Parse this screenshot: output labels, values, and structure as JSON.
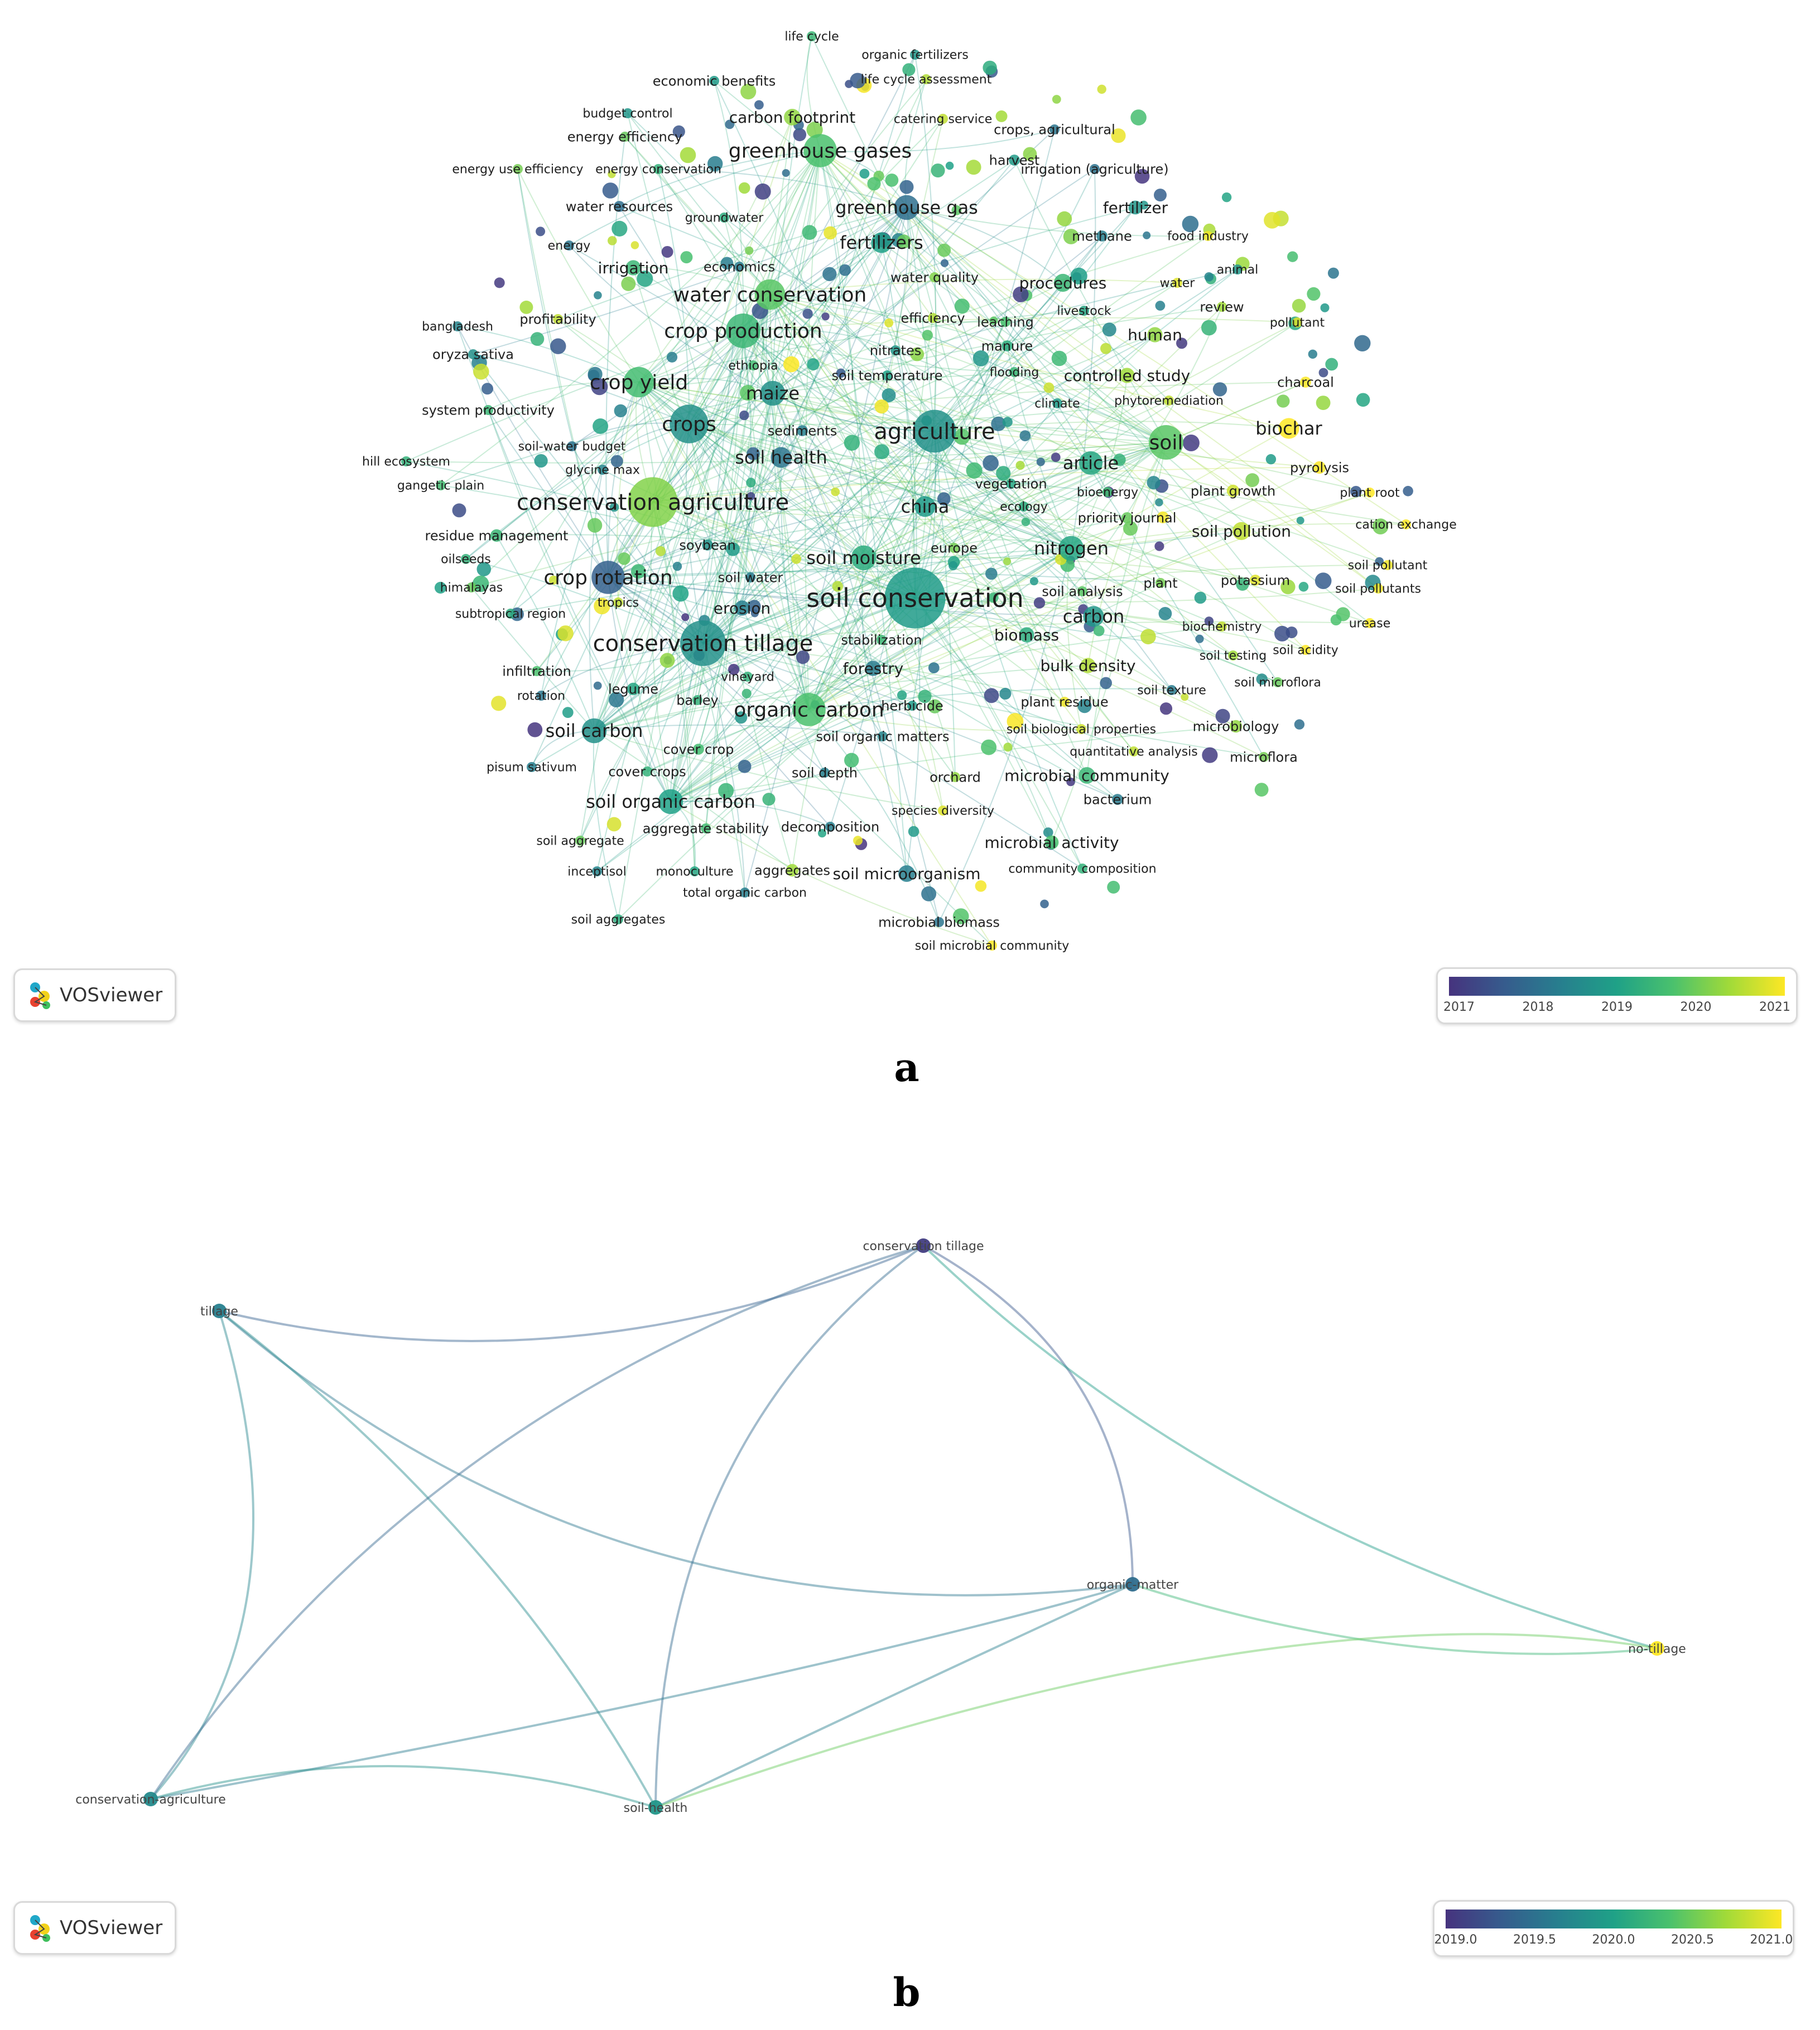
{
  "panel_a": {
    "caption": "a",
    "brand": "VOSviewer",
    "legend_ticks": [
      "2017",
      "2018",
      "2019",
      "2020",
      "2021"
    ],
    "colors": {
      "2017": "#46337e",
      "2018": "#365c8d",
      "2019": "#21918c",
      "2020": "#5ec962",
      "2021": "#fde725"
    },
    "nodes": [
      {
        "label": "life cycle",
        "year": 2019.6,
        "w": 12
      },
      {
        "label": "organic fertilizers",
        "year": 2019.0,
        "w": 10
      },
      {
        "label": "life cycle assessment",
        "year": 2020.5,
        "w": 12
      },
      {
        "label": "economic benefits",
        "year": 2019.1,
        "w": 14
      },
      {
        "label": "budget control",
        "year": 2019.0,
        "w": 12
      },
      {
        "label": "carbon footprint",
        "year": 2020.3,
        "w": 24
      },
      {
        "label": "catering service",
        "year": 2020.6,
        "w": 10
      },
      {
        "label": "crops, agricultural",
        "year": 2018.4,
        "w": 14
      },
      {
        "label": "energy efficiency",
        "year": 2020.0,
        "w": 14
      },
      {
        "label": "greenhouse gases",
        "year": 2019.8,
        "w": 48
      },
      {
        "label": "harvest",
        "year": 2019.1,
        "w": 16
      },
      {
        "label": "irrigation (agriculture)",
        "year": 2018.3,
        "w": 14
      },
      {
        "label": "energy use efficiency",
        "year": 2020.1,
        "w": 10
      },
      {
        "label": "energy conservation",
        "year": 2019.5,
        "w": 12
      },
      {
        "label": "water resources",
        "year": 2018.2,
        "w": 16
      },
      {
        "label": "groundwater",
        "year": 2019.4,
        "w": 12
      },
      {
        "label": "greenhouse gas",
        "year": 2018.2,
        "w": 36
      },
      {
        "label": "fertilizer",
        "year": 2019.0,
        "w": 20
      },
      {
        "label": "energy",
        "year": 2018.4,
        "w": 10
      },
      {
        "label": "methane",
        "year": 2018.6,
        "w": 16
      },
      {
        "label": "food industry",
        "year": 2020.9,
        "w": 12
      },
      {
        "label": "fertilizers",
        "year": 2019.2,
        "w": 30
      },
      {
        "label": "irrigation",
        "year": 2019.6,
        "w": 22
      },
      {
        "label": "economics",
        "year": 2018.5,
        "w": 14
      },
      {
        "label": "animal",
        "year": 2019.0,
        "w": 10
      },
      {
        "label": "water quality",
        "year": 2020.2,
        "w": 14
      },
      {
        "label": "water",
        "year": 2020.8,
        "w": 12
      },
      {
        "label": "procedures",
        "year": 2019.6,
        "w": 26
      },
      {
        "label": "water conservation",
        "year": 2019.9,
        "w": 44
      },
      {
        "label": "review",
        "year": 2020.4,
        "w": 14
      },
      {
        "label": "bangladesh",
        "year": 2018.7,
        "w": 12
      },
      {
        "label": "profitability",
        "year": 2020.6,
        "w": 14
      },
      {
        "label": "efficiency",
        "year": 2020.5,
        "w": 14
      },
      {
        "label": "leaching",
        "year": 2019.8,
        "w": 14
      },
      {
        "label": "livestock",
        "year": 2019.3,
        "w": 12
      },
      {
        "label": "pollutant",
        "year": 2020.8,
        "w": 10
      },
      {
        "label": "crop production",
        "year": 2019.6,
        "w": 50
      },
      {
        "label": "human",
        "year": 2020.3,
        "w": 22
      },
      {
        "label": "oryza sativa",
        "year": 2018.9,
        "w": 14
      },
      {
        "label": "nitrates",
        "year": 2019.0,
        "w": 14
      },
      {
        "label": "manure",
        "year": 2019.4,
        "w": 16
      },
      {
        "label": "ethiopia",
        "year": 2019.7,
        "w": 12
      },
      {
        "label": "charcoal",
        "year": 2021.0,
        "w": 16
      },
      {
        "label": "crop yield",
        "year": 2019.7,
        "w": 44
      },
      {
        "label": "maize",
        "year": 2018.9,
        "w": 36
      },
      {
        "label": "soil temperature",
        "year": 2019.2,
        "w": 14
      },
      {
        "label": "flooding",
        "year": 2019.6,
        "w": 12
      },
      {
        "label": "controlled study",
        "year": 2020.4,
        "w": 22
      },
      {
        "label": "system productivity",
        "year": 2019.6,
        "w": 14
      },
      {
        "label": "phytoremediation",
        "year": 2020.6,
        "w": 12
      },
      {
        "label": "climate",
        "year": 2019.1,
        "w": 12
      },
      {
        "label": "biochar",
        "year": 2021.0,
        "w": 30
      },
      {
        "label": "crops",
        "year": 2018.9,
        "w": 56
      },
      {
        "label": "sediments",
        "year": 2018.6,
        "w": 16
      },
      {
        "label": "agriculture",
        "year": 2018.9,
        "w": 62
      },
      {
        "label": "soil",
        "year": 2019.9,
        "w": 50
      },
      {
        "label": "soil-water budget",
        "year": 2018.3,
        "w": 12
      },
      {
        "label": "hill ecosystem",
        "year": 2019.5,
        "w": 10
      },
      {
        "label": "soil health",
        "year": 2018.4,
        "w": 30
      },
      {
        "label": "pyrolysis",
        "year": 2021.0,
        "w": 18
      },
      {
        "label": "glycine max",
        "year": 2018.7,
        "w": 12
      },
      {
        "label": "gangetic plain",
        "year": 2019.7,
        "w": 12
      },
      {
        "label": "article",
        "year": 2019.3,
        "w": 34
      },
      {
        "label": "vegetation",
        "year": 2019.3,
        "w": 14
      },
      {
        "label": "plant growth",
        "year": 2020.7,
        "w": 18
      },
      {
        "label": "plant root",
        "year": 2021.0,
        "w": 10
      },
      {
        "label": "conservation agriculture",
        "year": 2020.2,
        "w": 72
      },
      {
        "label": "bioenergy",
        "year": 2019.7,
        "w": 12
      },
      {
        "label": "ecology",
        "year": 2019.4,
        "w": 12
      },
      {
        "label": "china",
        "year": 2019.1,
        "w": 30
      },
      {
        "label": "priority journal",
        "year": 2020.0,
        "w": 16
      },
      {
        "label": "residue management",
        "year": 2019.6,
        "w": 18
      },
      {
        "label": "cation exchange",
        "year": 2021.0,
        "w": 10
      },
      {
        "label": "soil pollution",
        "year": 2020.6,
        "w": 26
      },
      {
        "label": "oilseeds",
        "year": 2019.5,
        "w": 10
      },
      {
        "label": "soybean",
        "year": 2018.9,
        "w": 16
      },
      {
        "label": "europe",
        "year": 2020.1,
        "w": 14
      },
      {
        "label": "nitrogen",
        "year": 2019.3,
        "w": 36
      },
      {
        "label": "soil moisture",
        "year": 2019.4,
        "w": 36
      },
      {
        "label": "soil pollutant",
        "year": 2020.9,
        "w": 10
      },
      {
        "label": "crop rotation",
        "year": 2017.9,
        "w": 48
      },
      {
        "label": "soil water",
        "year": 2018.5,
        "w": 14
      },
      {
        "label": "himalayas",
        "year": 2020.0,
        "w": 12
      },
      {
        "label": "soil analysis",
        "year": 2019.9,
        "w": 14
      },
      {
        "label": "plant",
        "year": 2020.1,
        "w": 14
      },
      {
        "label": "potassium",
        "year": 2020.8,
        "w": 16
      },
      {
        "label": "soil pollutants",
        "year": 2020.9,
        "w": 10
      },
      {
        "label": "soil conservation",
        "year": 2019.1,
        "w": 88
      },
      {
        "label": "tropics",
        "year": 2020.6,
        "w": 12
      },
      {
        "label": "erosion",
        "year": 2018.6,
        "w": 22
      },
      {
        "label": "subtropical region",
        "year": 2019.4,
        "w": 12
      },
      {
        "label": "carbon",
        "year": 2019.0,
        "w": 30
      },
      {
        "label": "urease",
        "year": 2021.0,
        "w": 10
      },
      {
        "label": "biomass",
        "year": 2019.4,
        "w": 22
      },
      {
        "label": "conservation tillage",
        "year": 2018.9,
        "w": 66
      },
      {
        "label": "stabilization",
        "year": 2019.6,
        "w": 14
      },
      {
        "label": "biochemistry",
        "year": 2020.6,
        "w": 12
      },
      {
        "label": "soil acidity",
        "year": 2021.0,
        "w": 12
      },
      {
        "label": "soil testing",
        "year": 2020.4,
        "w": 12
      },
      {
        "label": "infiltration",
        "year": 2019.8,
        "w": 14
      },
      {
        "label": "bulk density",
        "year": 2020.5,
        "w": 22
      },
      {
        "label": "forestry",
        "year": 2018.5,
        "w": 22
      },
      {
        "label": "vineyard",
        "year": 2019.5,
        "w": 12
      },
      {
        "label": "soil microflora",
        "year": 2020.0,
        "w": 12
      },
      {
        "label": "legume",
        "year": 2019.3,
        "w": 18
      },
      {
        "label": "soil texture",
        "year": 2018.5,
        "w": 12
      },
      {
        "label": "rotation",
        "year": 2018.4,
        "w": 12
      },
      {
        "label": "barley",
        "year": 2019.5,
        "w": 14
      },
      {
        "label": "organic carbon",
        "year": 2019.8,
        "w": 48
      },
      {
        "label": "herbicide",
        "year": 2019.1,
        "w": 14
      },
      {
        "label": "plant residue",
        "year": 2020.9,
        "w": 14
      },
      {
        "label": "soil carbon",
        "year": 2018.9,
        "w": 36
      },
      {
        "label": "soil biological properties",
        "year": 2020.7,
        "w": 12
      },
      {
        "label": "microbiology",
        "year": 2020.3,
        "w": 18
      },
      {
        "label": "soil organic matters",
        "year": 2018.7,
        "w": 14
      },
      {
        "label": "cover crop",
        "year": 2019.7,
        "w": 16
      },
      {
        "label": "quantitative analysis",
        "year": 2020.6,
        "w": 12
      },
      {
        "label": "microflora",
        "year": 2020.1,
        "w": 14
      },
      {
        "label": "pisum sativum",
        "year": 2018.6,
        "w": 10
      },
      {
        "label": "cover crops",
        "year": 2019.5,
        "w": 14
      },
      {
        "label": "soil depth",
        "year": 2018.6,
        "w": 14
      },
      {
        "label": "orchard",
        "year": 2020.3,
        "w": 14
      },
      {
        "label": "microbial community",
        "year": 2019.6,
        "w": 24
      },
      {
        "label": "soil organic carbon",
        "year": 2019.2,
        "w": 36
      },
      {
        "label": "bacterium",
        "year": 2018.5,
        "w": 16
      },
      {
        "label": "species diversity",
        "year": 2020.8,
        "w": 12
      },
      {
        "label": "aggregate stability",
        "year": 2019.7,
        "w": 14
      },
      {
        "label": "decomposition",
        "year": 2018.6,
        "w": 14
      },
      {
        "label": "soil aggregate",
        "year": 2020.0,
        "w": 10
      },
      {
        "label": "microbial activity",
        "year": 2019.8,
        "w": 20
      },
      {
        "label": "inceptisol",
        "year": 2018.7,
        "w": 10
      },
      {
        "label": "monoculture",
        "year": 2019.3,
        "w": 12
      },
      {
        "label": "aggregates",
        "year": 2020.4,
        "w": 18
      },
      {
        "label": "soil microorganism",
        "year": 2018.6,
        "w": 24
      },
      {
        "label": "community composition",
        "year": 2019.5,
        "w": 12
      },
      {
        "label": "total organic carbon",
        "year": 2018.6,
        "w": 12
      },
      {
        "label": "soil aggregates",
        "year": 2019.4,
        "w": 10
      },
      {
        "label": "microbial biomass",
        "year": 2018.4,
        "w": 14
      },
      {
        "label": "soil microbial community",
        "year": 2021.0,
        "w": 12
      }
    ]
  },
  "panel_b": {
    "caption": "b",
    "brand": "VOSviewer",
    "legend_ticks": [
      "2019.0",
      "2019.5",
      "2020.0",
      "2020.5",
      "2021.0"
    ],
    "nodes": [
      {
        "id": "conservation tillage",
        "label": "conservation tillage",
        "year": 2019.1
      },
      {
        "id": "tillage",
        "label": "tillage",
        "year": 2019.8
      },
      {
        "id": "organic-matter",
        "label": "organic-matter",
        "year": 2019.6
      },
      {
        "id": "no-tillage",
        "label": "no-tillage",
        "year": 2021.0
      },
      {
        "id": "conservation-agriculture",
        "label": "conservation-agriculture",
        "year": 2019.9
      },
      {
        "id": "soil-health",
        "label": "soil-health",
        "year": 2020.0
      }
    ],
    "links": [
      [
        "tillage",
        "conservation tillage"
      ],
      [
        "tillage",
        "organic-matter"
      ],
      [
        "tillage",
        "soil-health"
      ],
      [
        "tillage",
        "conservation-agriculture"
      ],
      [
        "conservation tillage",
        "organic-matter"
      ],
      [
        "conservation tillage",
        "soil-health"
      ],
      [
        "conservation tillage",
        "conservation-agriculture"
      ],
      [
        "conservation tillage",
        "no-tillage"
      ],
      [
        "organic-matter",
        "no-tillage"
      ],
      [
        "organic-matter",
        "soil-health"
      ],
      [
        "organic-matter",
        "conservation-agriculture"
      ],
      [
        "soil-health",
        "no-tillage"
      ],
      [
        "conservation-agriculture",
        "soil-health"
      ]
    ]
  }
}
